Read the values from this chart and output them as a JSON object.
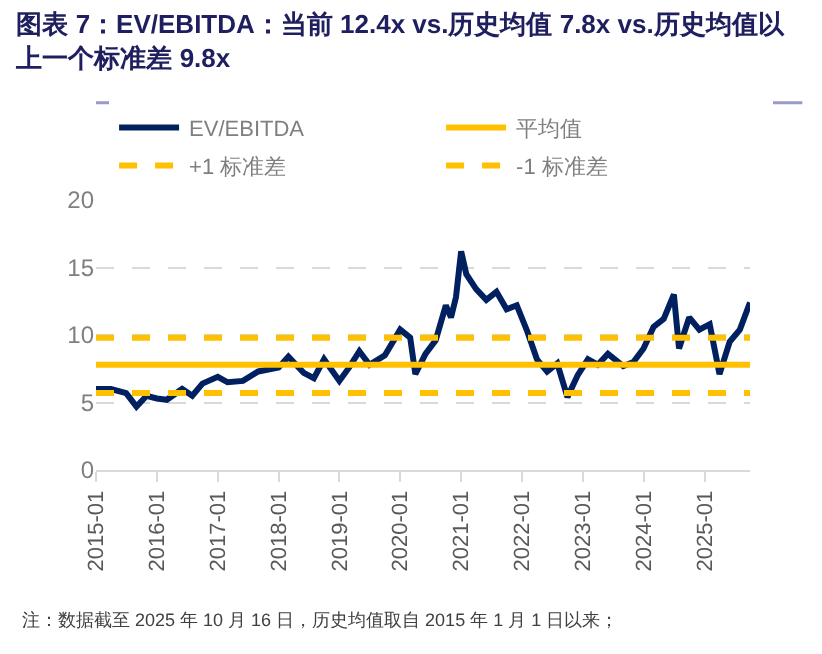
{
  "chart_data": {
    "type": "line",
    "title": "图表 7：EV/EBITDA：当前 12.4x vs.历史均值 7.8x vs.历史均值以上一个标准差 9.8x",
    "x": [
      "2015-01",
      "2015-04",
      "2015-07",
      "2015-09",
      "2015-11",
      "2016-01",
      "2016-03",
      "2016-06",
      "2016-08",
      "2016-10",
      "2017-01",
      "2017-03",
      "2017-06",
      "2017-09",
      "2018-01",
      "2018-03",
      "2018-06",
      "2018-08",
      "2018-10",
      "2019-01",
      "2019-03",
      "2019-05",
      "2019-07",
      "2019-10",
      "2020-01",
      "2020-03",
      "2020-04",
      "2020-06",
      "2020-08",
      "2020-10",
      "2020-11",
      "2020-12",
      "2021-01",
      "2021-02",
      "2021-04",
      "2021-06",
      "2021-08",
      "2021-10",
      "2021-12",
      "2022-02",
      "2022-04",
      "2022-06",
      "2022-08",
      "2022-10",
      "2022-12",
      "2023-02",
      "2023-04",
      "2023-06",
      "2023-09",
      "2023-11",
      "2024-01",
      "2024-03",
      "2024-05",
      "2024-07",
      "2024-08",
      "2024-10",
      "2024-12",
      "2025-02",
      "2025-04",
      "2025-06",
      "2025-08",
      "2025-10"
    ],
    "series": [
      {
        "name": "EV/EBITDA",
        "color": "#002060",
        "values": [
          6.0,
          6.0,
          5.7,
          4.7,
          5.5,
          5.3,
          5.2,
          6.0,
          5.5,
          6.4,
          6.9,
          6.5,
          6.6,
          7.3,
          7.6,
          8.4,
          7.2,
          6.8,
          8.2,
          6.6,
          7.6,
          8.8,
          7.8,
          8.5,
          10.4,
          9.8,
          7.1,
          8.6,
          9.6,
          12.2,
          11.3,
          12.8,
          16.2,
          14.5,
          13.4,
          12.6,
          13.2,
          11.9,
          12.2,
          10.3,
          8.2,
          7.3,
          7.9,
          5.4,
          7.0,
          8.2,
          7.8,
          8.6,
          7.7,
          8.0,
          9.0,
          10.6,
          11.2,
          13.0,
          9.0,
          11.3,
          10.4,
          10.8,
          7.1,
          9.5,
          10.4,
          12.4
        ]
      }
    ],
    "ref_lines": [
      {
        "axis": "y",
        "value": 7.8,
        "label": "平均值",
        "color": "#ffc000",
        "line_style": "solid"
      },
      {
        "axis": "y",
        "value": 9.8,
        "label": "+1 标准差",
        "color": "#ffc000",
        "line_style": "dashed"
      },
      {
        "axis": "y",
        "value": 5.7,
        "label": "-1 标准差",
        "color": "#ffc000",
        "line_style": "dashed"
      }
    ],
    "xlim": [
      "2015-01",
      "2025-10"
    ],
    "xticks": [
      "2015-01",
      "2016-01",
      "2017-01",
      "2018-01",
      "2019-01",
      "2020-01",
      "2021-01",
      "2022-01",
      "2023-01",
      "2024-01",
      "2025-01"
    ],
    "ylim": [
      0,
      20
    ],
    "yticks": [
      0,
      5,
      10,
      15,
      20
    ],
    "grid": "y",
    "legend": "top",
    "annotations": [
      "注：数据截至 2025 年 10 月 16 日，历史均值取自 2015 年 1 月 1 日以来；"
    ]
  }
}
